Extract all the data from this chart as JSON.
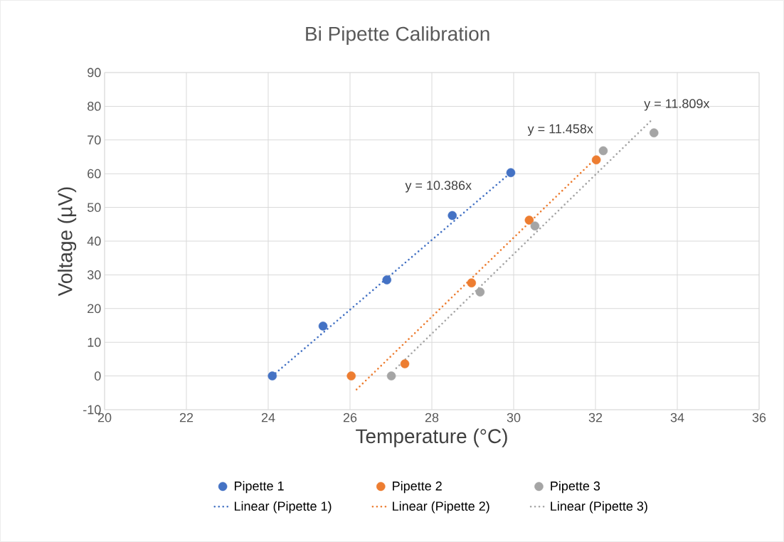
{
  "chart_data": {
    "type": "scatter",
    "title": "Bi Pipette Calibration",
    "xlabel": "Temperature (°C)",
    "ylabel": "Voltage (µV)",
    "xlim": [
      20,
      36
    ],
    "xticks": [
      20,
      22,
      24,
      26,
      28,
      30,
      32,
      34,
      36
    ],
    "ylim": [
      -10,
      90
    ],
    "yticks": [
      -10,
      0,
      10,
      20,
      30,
      40,
      50,
      60,
      70,
      80,
      90
    ],
    "grid": true,
    "legend": "bottom",
    "series": [
      {
        "name": "Pipette 1",
        "marker": "circle",
        "color": "#4472c4",
        "x": [
          24.1,
          25.34,
          26.9,
          28.5,
          29.93
        ],
        "values": [
          0,
          14.8,
          28.5,
          47.6,
          60.3
        ]
      },
      {
        "name": "Pipette 2",
        "marker": "circle",
        "color": "#ed7d31",
        "x": [
          26.03,
          27.34,
          28.97,
          30.38,
          32.02
        ],
        "values": [
          0,
          3.6,
          27.6,
          46.2,
          64.1
        ]
      },
      {
        "name": "Pipette 3",
        "marker": "circle",
        "color": "#a5a5a5",
        "x": [
          27.01,
          29.18,
          30.52,
          32.19,
          33.43
        ],
        "values": [
          0,
          24.9,
          44.5,
          66.8,
          72.1
        ]
      },
      {
        "name": "Linear (Pipette 1)",
        "type": "line",
        "line_style": "dotted",
        "color": "#4472c4",
        "x": [
          24.1,
          29.93
        ],
        "values": [
          0,
          60.3
        ]
      },
      {
        "name": "Linear (Pipette 2)",
        "type": "line",
        "line_style": "dotted",
        "color": "#ed7d31",
        "x": [
          26.16,
          32.02
        ],
        "values": [
          -4.0,
          64.7
        ]
      },
      {
        "name": "Linear (Pipette 3)",
        "type": "line",
        "line_style": "dotted",
        "color": "#a5a5a5",
        "x": [
          27.13,
          33.39
        ],
        "values": [
          2.3,
          76.1
        ]
      }
    ],
    "annotations": [
      "y = 10.386x",
      "y = 11.458x",
      "y = 11.809x"
    ]
  }
}
